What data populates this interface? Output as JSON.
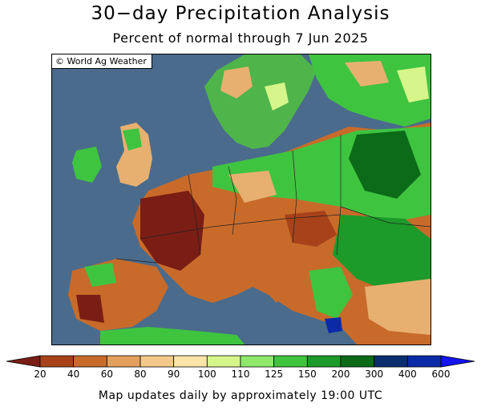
{
  "title": "30−day Precipitation Analysis",
  "subtitle": "Percent of normal through 7 Jun 2025",
  "credit": "© World Ag Weather",
  "footer": "Map updates daily by approximately 19:00 UTC",
  "legend": {
    "ticks": [
      "20",
      "40",
      "60",
      "80",
      "90",
      "100",
      "110",
      "125",
      "150",
      "200",
      "300",
      "400",
      "600"
    ],
    "colors": [
      "#7a1d14",
      "#a8421a",
      "#c86b2a",
      "#e2a05c",
      "#f2c98a",
      "#fbe4a8",
      "#d6f58a",
      "#8fe86a",
      "#3fc440",
      "#1c9a2a",
      "#0b6b18",
      "#0a2e6e",
      "#0a2aa8",
      "#1414ee"
    ]
  },
  "map": {
    "water_color": "#4a6b8c",
    "region": "Europe"
  }
}
